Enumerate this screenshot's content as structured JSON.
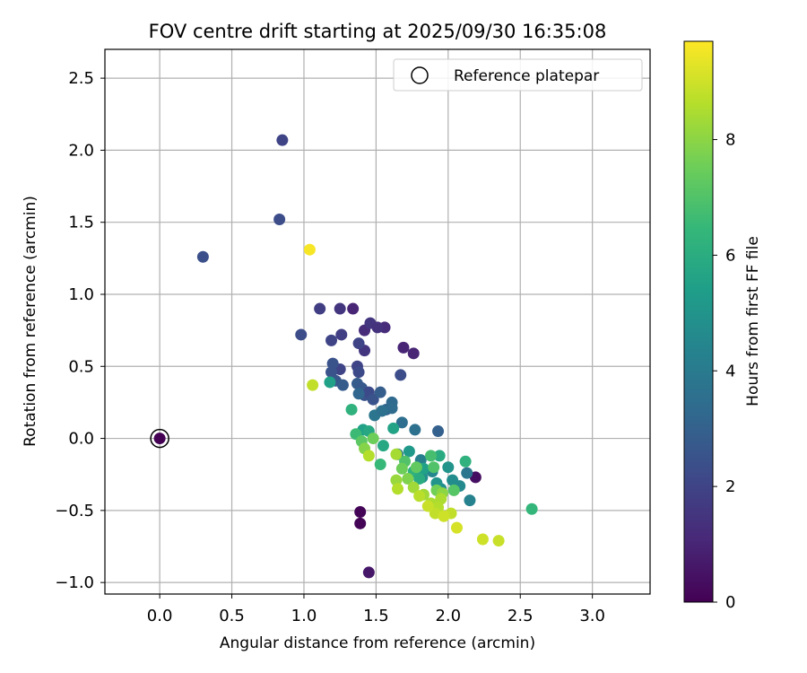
{
  "chart_data": {
    "type": "scatter",
    "title": "FOV centre drift starting at 2025/09/30 16:35:08",
    "xlabel": "Angular distance from reference (arcmin)",
    "ylabel": "Rotation from reference (arcmin)",
    "xlim": [
      -0.38,
      3.4
    ],
    "ylim": [
      -1.08,
      2.7
    ],
    "xticks": [
      0.0,
      0.5,
      1.0,
      1.5,
      2.0,
      2.5,
      3.0
    ],
    "xtick_labels": [
      "0.0",
      "0.5",
      "1.0",
      "1.5",
      "2.0",
      "2.5",
      "3.0"
    ],
    "yticks": [
      -1.0,
      -0.5,
      0.0,
      0.5,
      1.0,
      1.5,
      2.0,
      2.5
    ],
    "ytick_labels": [
      "−1.0",
      "−0.5",
      "0.0",
      "0.5",
      "1.0",
      "1.5",
      "2.0",
      "2.5"
    ],
    "grid": true,
    "legend": {
      "position": "top-right",
      "entries": [
        "Reference platepar"
      ]
    },
    "reference": {
      "x": 0.0,
      "y": 0.0,
      "hours": 0.0
    },
    "colorbar": {
      "label": "Hours from first FF file",
      "range": [
        0,
        9.7
      ],
      "ticks": [
        0,
        2,
        4,
        6,
        8
      ],
      "tick_labels": [
        "0",
        "2",
        "4",
        "6",
        "8"
      ],
      "colormap": [
        "#440154",
        "#482878",
        "#3e4989",
        "#31688e",
        "#26828e",
        "#1f9e89",
        "#35b779",
        "#6ece58",
        "#b5de2b",
        "#fde725"
      ]
    },
    "points": [
      {
        "x": 1.39,
        "y": -0.51,
        "h": 0.1
      },
      {
        "x": 1.39,
        "y": -0.59,
        "h": 0.1
      },
      {
        "x": 1.45,
        "y": -0.93,
        "h": 0.6
      },
      {
        "x": 2.19,
        "y": -0.27,
        "h": 0.4
      },
      {
        "x": 1.76,
        "y": 0.59,
        "h": 1.0
      },
      {
        "x": 1.69,
        "y": 0.63,
        "h": 1.0
      },
      {
        "x": 1.34,
        "y": 0.9,
        "h": 1.0
      },
      {
        "x": 1.56,
        "y": 0.77,
        "h": 1.2
      },
      {
        "x": 1.42,
        "y": 0.75,
        "h": 1.2
      },
      {
        "x": 1.46,
        "y": 0.8,
        "h": 1.5
      },
      {
        "x": 1.51,
        "y": 0.77,
        "h": 1.4
      },
      {
        "x": 1.25,
        "y": 0.9,
        "h": 1.5
      },
      {
        "x": 1.11,
        "y": 0.9,
        "h": 1.8
      },
      {
        "x": 1.42,
        "y": 0.61,
        "h": 1.5
      },
      {
        "x": 1.26,
        "y": 0.72,
        "h": 1.8
      },
      {
        "x": 1.38,
        "y": 0.66,
        "h": 2.0
      },
      {
        "x": 1.19,
        "y": 0.68,
        "h": 2.0
      },
      {
        "x": 0.85,
        "y": 2.07,
        "h": 2.0
      },
      {
        "x": 0.83,
        "y": 1.52,
        "h": 2.3
      },
      {
        "x": 0.98,
        "y": 0.72,
        "h": 2.3
      },
      {
        "x": 0.3,
        "y": 1.26,
        "h": 2.4
      },
      {
        "x": 1.25,
        "y": 0.48,
        "h": 2.0
      },
      {
        "x": 1.37,
        "y": 0.5,
        "h": 2.0
      },
      {
        "x": 1.38,
        "y": 0.46,
        "h": 2.2
      },
      {
        "x": 1.2,
        "y": 0.52,
        "h": 2.5
      },
      {
        "x": 1.19,
        "y": 0.46,
        "h": 2.5
      },
      {
        "x": 1.22,
        "y": 0.4,
        "h": 2.6
      },
      {
        "x": 1.27,
        "y": 0.37,
        "h": 2.8
      },
      {
        "x": 1.37,
        "y": 0.38,
        "h": 2.8
      },
      {
        "x": 1.4,
        "y": 0.35,
        "h": 2.7
      },
      {
        "x": 1.42,
        "y": 0.3,
        "h": 2.5
      },
      {
        "x": 1.45,
        "y": 0.32,
        "h": 2.2
      },
      {
        "x": 1.48,
        "y": 0.27,
        "h": 2.5
      },
      {
        "x": 1.53,
        "y": 0.32,
        "h": 2.9
      },
      {
        "x": 1.67,
        "y": 0.44,
        "h": 2.3
      },
      {
        "x": 1.57,
        "y": 0.2,
        "h": 3.1
      },
      {
        "x": 1.61,
        "y": 0.25,
        "h": 3.3
      },
      {
        "x": 1.61,
        "y": 0.21,
        "h": 3.4
      },
      {
        "x": 1.68,
        "y": 0.11,
        "h": 3.5
      },
      {
        "x": 1.77,
        "y": 0.06,
        "h": 3.6
      },
      {
        "x": 1.93,
        "y": 0.05,
        "h": 3.0
      },
      {
        "x": 1.49,
        "y": 0.16,
        "h": 3.8
      },
      {
        "x": 1.54,
        "y": 0.19,
        "h": 3.6
      },
      {
        "x": 1.65,
        "y": -0.11,
        "h": 4.0
      },
      {
        "x": 1.81,
        "y": -0.15,
        "h": 4.2
      },
      {
        "x": 1.89,
        "y": -0.23,
        "h": 4.5
      },
      {
        "x": 2.13,
        "y": -0.24,
        "h": 3.8
      },
      {
        "x": 2.15,
        "y": -0.43,
        "h": 4.3
      },
      {
        "x": 2.08,
        "y": -0.33,
        "h": 4.6
      },
      {
        "x": 1.82,
        "y": -0.27,
        "h": 4.8
      },
      {
        "x": 1.95,
        "y": -0.35,
        "h": 4.8
      },
      {
        "x": 1.92,
        "y": -0.31,
        "h": 5.0
      },
      {
        "x": 2.0,
        "y": -0.2,
        "h": 5.0
      },
      {
        "x": 2.03,
        "y": -0.29,
        "h": 4.7
      },
      {
        "x": 1.38,
        "y": 0.31,
        "h": 3.2
      },
      {
        "x": 1.73,
        "y": -0.09,
        "h": 5.2
      },
      {
        "x": 1.83,
        "y": -0.21,
        "h": 5.5
      },
      {
        "x": 1.18,
        "y": 0.39,
        "h": 5.5
      },
      {
        "x": 1.41,
        "y": 0.06,
        "h": 5.5
      },
      {
        "x": 1.45,
        "y": 0.05,
        "h": 5.8
      },
      {
        "x": 1.55,
        "y": -0.05,
        "h": 5.8
      },
      {
        "x": 1.62,
        "y": 0.07,
        "h": 5.6
      },
      {
        "x": 1.94,
        "y": -0.12,
        "h": 5.9
      },
      {
        "x": 2.12,
        "y": -0.16,
        "h": 6.2
      },
      {
        "x": 2.58,
        "y": -0.49,
        "h": 6.4
      },
      {
        "x": 1.33,
        "y": 0.2,
        "h": 6.2
      },
      {
        "x": 1.76,
        "y": -0.23,
        "h": 6.2
      },
      {
        "x": 1.8,
        "y": -0.28,
        "h": 6.0
      },
      {
        "x": 1.53,
        "y": -0.18,
        "h": 6.5
      },
      {
        "x": 1.36,
        "y": 0.03,
        "h": 6.6
      },
      {
        "x": 1.88,
        "y": -0.12,
        "h": 6.8
      },
      {
        "x": 1.7,
        "y": -0.16,
        "h": 7.0
      },
      {
        "x": 1.9,
        "y": -0.2,
        "h": 7.0
      },
      {
        "x": 1.4,
        "y": -0.02,
        "h": 7.2
      },
      {
        "x": 1.78,
        "y": -0.2,
        "h": 7.3
      },
      {
        "x": 2.04,
        "y": -0.36,
        "h": 7.1
      },
      {
        "x": 1.68,
        "y": -0.21,
        "h": 7.5
      },
      {
        "x": 1.48,
        "y": 0.0,
        "h": 7.5
      },
      {
        "x": 1.92,
        "y": -0.36,
        "h": 7.6
      },
      {
        "x": 1.72,
        "y": -0.28,
        "h": 7.8
      },
      {
        "x": 1.42,
        "y": -0.07,
        "h": 7.9
      },
      {
        "x": 1.96,
        "y": -0.38,
        "h": 8.0
      },
      {
        "x": 1.64,
        "y": -0.29,
        "h": 8.2
      },
      {
        "x": 1.76,
        "y": -0.34,
        "h": 8.3
      },
      {
        "x": 1.83,
        "y": -0.39,
        "h": 8.3
      },
      {
        "x": 1.64,
        "y": -0.11,
        "h": 8.4
      },
      {
        "x": 1.88,
        "y": -0.45,
        "h": 8.5
      },
      {
        "x": 1.95,
        "y": -0.42,
        "h": 8.5
      },
      {
        "x": 1.45,
        "y": -0.12,
        "h": 8.6
      },
      {
        "x": 1.93,
        "y": -0.48,
        "h": 8.6
      },
      {
        "x": 1.65,
        "y": -0.35,
        "h": 8.6
      },
      {
        "x": 1.8,
        "y": -0.4,
        "h": 8.7
      },
      {
        "x": 1.91,
        "y": -0.52,
        "h": 8.8
      },
      {
        "x": 2.02,
        "y": -0.52,
        "h": 8.8
      },
      {
        "x": 1.86,
        "y": -0.47,
        "h": 8.9
      },
      {
        "x": 1.97,
        "y": -0.54,
        "h": 9.0
      },
      {
        "x": 2.06,
        "y": -0.62,
        "h": 9.1
      },
      {
        "x": 2.24,
        "y": -0.7,
        "h": 9.0
      },
      {
        "x": 2.35,
        "y": -0.71,
        "h": 8.9
      },
      {
        "x": 1.06,
        "y": 0.37,
        "h": 8.8
      },
      {
        "x": 1.04,
        "y": 1.31,
        "h": 9.6
      },
      {
        "x": 0.0,
        "y": 0.0,
        "h": 0.0
      }
    ]
  }
}
